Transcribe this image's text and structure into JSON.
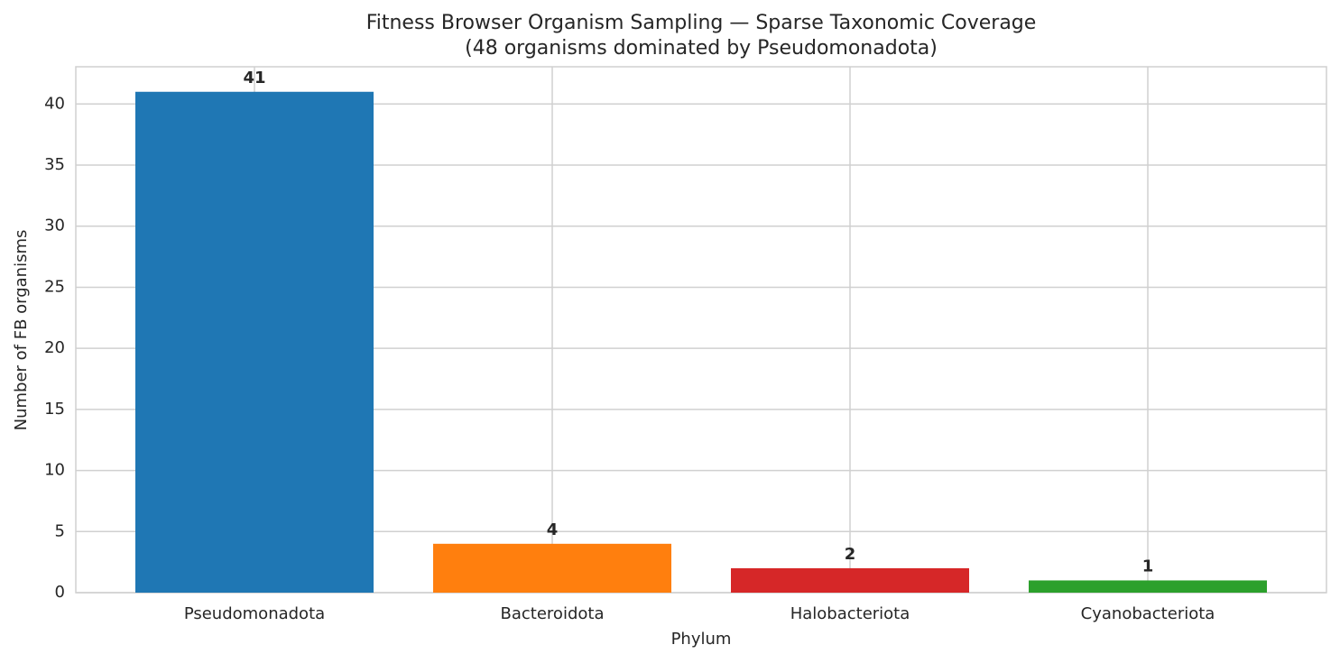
{
  "chart_data": {
    "type": "bar",
    "title": "Fitness Browser Organism Sampling — Sparse Taxonomic Coverage",
    "subtitle": "(48 organisms dominated by Pseudomonadota)",
    "x_label": "Phylum",
    "y_label": "Number of FB organisms",
    "categories": [
      "Pseudomonadota",
      "Bacteroidota",
      "Halobacteriota",
      "Cyanobacteriota"
    ],
    "values": [
      41,
      4,
      2,
      1
    ],
    "colors": [
      "#1f77b4",
      "#ff7f0e",
      "#d62728",
      "#2ca02c"
    ],
    "ylim": [
      0,
      43.05
    ],
    "yticks": [
      0,
      5,
      10,
      15,
      20,
      25,
      30,
      35,
      40
    ],
    "grid": true
  }
}
